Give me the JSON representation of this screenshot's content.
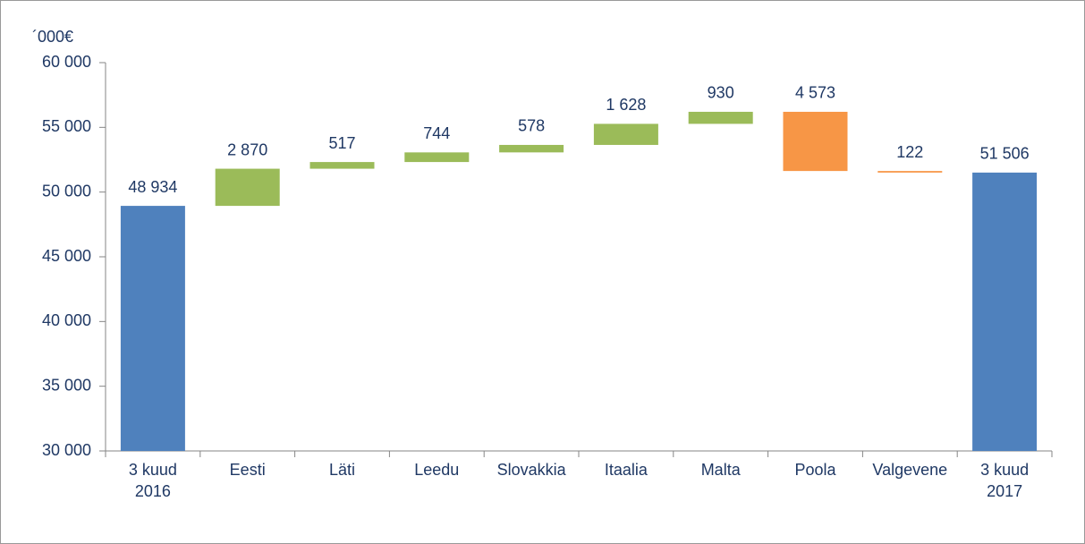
{
  "chart_data": {
    "type": "waterfall",
    "ylabel": "´000€",
    "categories": [
      "3 kuud\n2016",
      "Eesti",
      "Läti",
      "Leedu",
      "Slovakkia",
      "Itaalia",
      "Malta",
      "Poola",
      "Valgevene",
      "3 kuud\n2017"
    ],
    "measure": [
      "absolute",
      "relative",
      "relative",
      "relative",
      "relative",
      "relative",
      "relative",
      "relative",
      "relative",
      "absolute"
    ],
    "values": [
      48934,
      2870,
      517,
      744,
      578,
      1628,
      930,
      -4573,
      -122,
      51506
    ],
    "value_labels": [
      "48 934",
      "2 870",
      "517",
      "744",
      "578",
      "1 628",
      "930",
      "4 573",
      "122",
      "51 506"
    ],
    "colors": {
      "total": "#4f81bd",
      "increase": "#9bbb59",
      "decrease": "#f79646"
    },
    "ylim": [
      30000,
      60000
    ],
    "yticks": [
      {
        "value": 30000,
        "label": "30 000"
      },
      {
        "value": 35000,
        "label": "35 000"
      },
      {
        "value": 40000,
        "label": "40 000"
      },
      {
        "value": 45000,
        "label": "45 000"
      },
      {
        "value": 50000,
        "label": "50 000"
      },
      {
        "value": 55000,
        "label": "55 000"
      },
      {
        "value": 60000,
        "label": "60 000"
      }
    ]
  }
}
